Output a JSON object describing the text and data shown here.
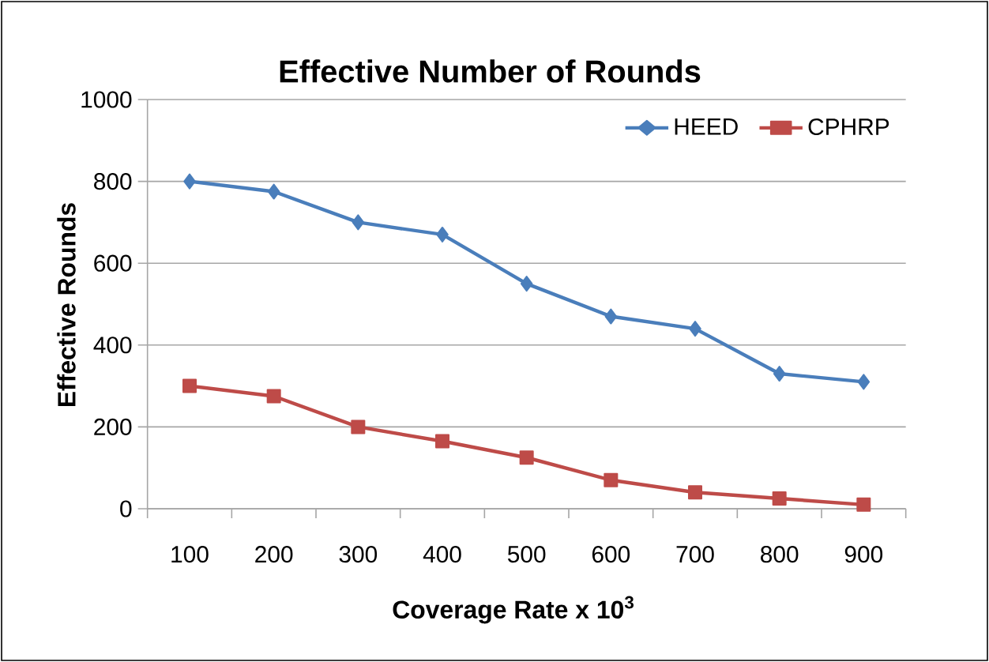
{
  "chart_data": {
    "type": "line",
    "title": "Effective Number of Rounds",
    "xlabel": "Coverage Rate x 10$^{3}$",
    "ylabel": "Effective Rounds",
    "categories": [
      "100",
      "200",
      "300",
      "400",
      "500",
      "600",
      "700",
      "800",
      "900"
    ],
    "series": [
      {
        "name": "HEED",
        "color": "#4a7ebb",
        "marker": "diamond",
        "values": [
          800,
          775,
          700,
          670,
          550,
          470,
          440,
          330,
          310
        ]
      },
      {
        "name": "CPHRP",
        "color": "#be4b48",
        "marker": "square",
        "values": [
          300,
          275,
          200,
          165,
          125,
          70,
          40,
          25,
          10
        ]
      }
    ],
    "ylim": [
      0,
      1000
    ],
    "yticks": [
      0,
      200,
      400,
      600,
      800,
      1000
    ],
    "grid": "y",
    "legend": "top right"
  }
}
